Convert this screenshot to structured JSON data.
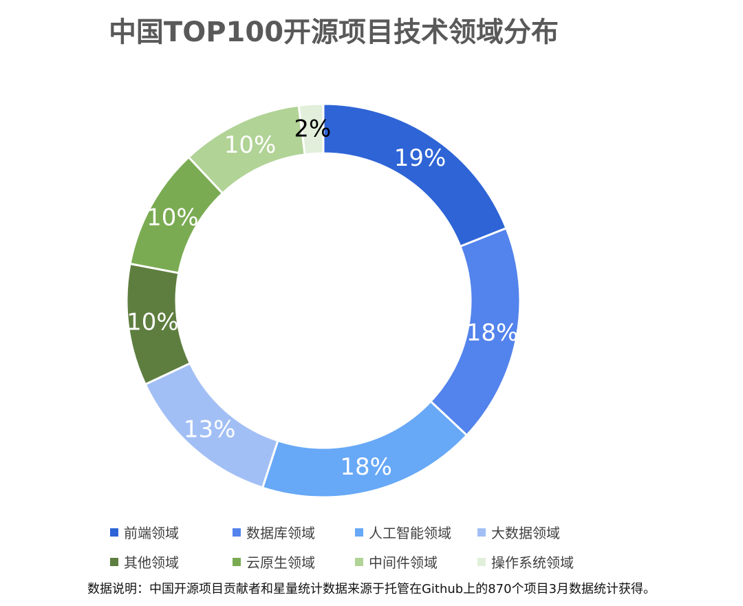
{
  "chart_data": {
    "type": "pie",
    "title": "中国TOP100开源项目技术领域分布",
    "categories": [
      "前端领域",
      "数据库领域",
      "人工智能领域",
      "大数据领域",
      "其他领域",
      "云原生领域",
      "中间件领域",
      "操作系统领域"
    ],
    "values": [
      19,
      18,
      18,
      13,
      10,
      10,
      10,
      2
    ],
    "labels": [
      "19%",
      "18%",
      "18%",
      "13%",
      "10%",
      "10%",
      "10%",
      "2%"
    ],
    "colors": [
      "#2e64d6",
      "#5383ec",
      "#67a8f7",
      "#a2bff5",
      "#5e7e3f",
      "#7aab52",
      "#b1d396",
      "#e2efda"
    ],
    "label_colors": [
      "#ffffff",
      "#ffffff",
      "#ffffff",
      "#ffffff",
      "#ffffff",
      "#ffffff",
      "#ffffff",
      "#000000"
    ],
    "legend_placement": "bottom",
    "hole": "donut"
  },
  "note": "数据说明：中国开源项目贡献者和星量统计数据来源于托管在Github上的870个项目3月数据统计获得。"
}
